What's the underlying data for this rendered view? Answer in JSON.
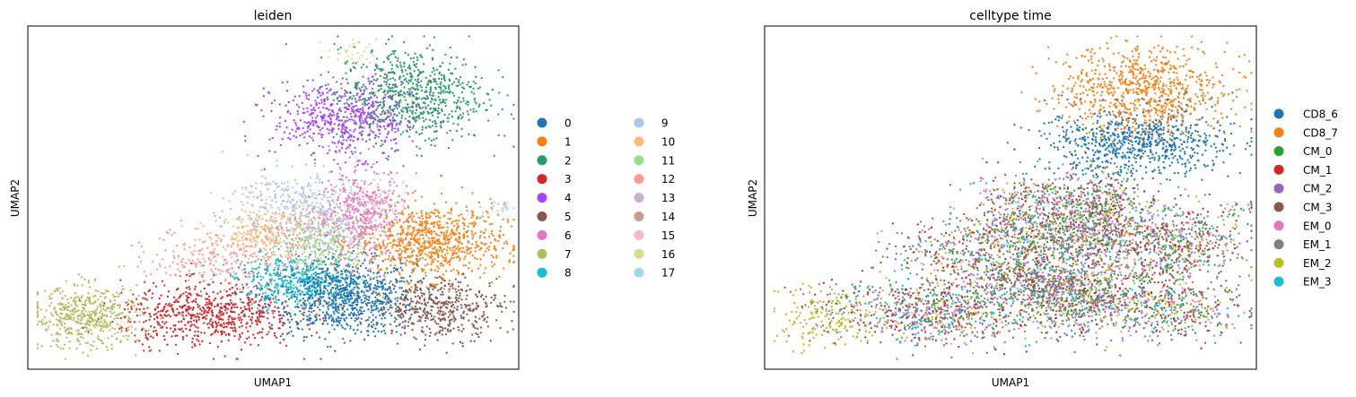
{
  "chart_data": [
    {
      "type": "scatter",
      "title": "leiden",
      "xlabel": "UMAP1",
      "ylabel": "UMAP2",
      "grid": false,
      "legend_position": "right",
      "legend_columns": 2,
      "categories": [
        "0",
        "1",
        "2",
        "3",
        "4",
        "5",
        "6",
        "7",
        "8",
        "9",
        "10",
        "11",
        "12",
        "13",
        "14",
        "15",
        "16",
        "17"
      ],
      "colors": [
        "#1f77b4",
        "#ff7f0e",
        "#279e68",
        "#d62728",
        "#aa40fc",
        "#8c564b",
        "#e377c2",
        "#b5bd61",
        "#17becf",
        "#aec7e8",
        "#ffbb78",
        "#98df8a",
        "#ff9896",
        "#c5b0d5",
        "#c49c94",
        "#f7b6d2",
        "#dbdb8d",
        "#9edae5"
      ],
      "clusters": [
        {
          "cluster": "0",
          "center": [
            6.4,
            2.1
          ],
          "spread": [
            0.75,
            0.55
          ],
          "count": 900
        },
        {
          "cluster": "1",
          "center": [
            8.2,
            3.7
          ],
          "spread": [
            0.75,
            0.55
          ],
          "count": 800
        },
        {
          "cluster": "2",
          "center": [
            7.8,
            8.0
          ],
          "spread": [
            0.75,
            0.7
          ],
          "count": 700
        },
        {
          "cluster": "3",
          "center": [
            3.7,
            1.6
          ],
          "spread": [
            0.9,
            0.45
          ],
          "count": 650
        },
        {
          "cluster": "4",
          "center": [
            6.5,
            7.3
          ],
          "spread": [
            0.75,
            0.55
          ],
          "count": 600
        },
        {
          "cluster": "5",
          "center": [
            8.4,
            1.8
          ],
          "spread": [
            0.65,
            0.45
          ],
          "count": 450
        },
        {
          "cluster": "6",
          "center": [
            6.8,
            4.5
          ],
          "spread": [
            0.45,
            0.7
          ],
          "count": 400
        },
        {
          "cluster": "7",
          "center": [
            1.2,
            1.5
          ],
          "spread": [
            0.55,
            0.45
          ],
          "count": 500
        },
        {
          "cluster": "8",
          "center": [
            5.4,
            2.6
          ],
          "spread": [
            0.6,
            0.35
          ],
          "count": 380
        },
        {
          "cluster": "9",
          "center": [
            5.5,
            4.9
          ],
          "spread": [
            0.65,
            0.45
          ],
          "count": 300
        },
        {
          "cluster": "10",
          "center": [
            4.8,
            4.0
          ],
          "spread": [
            0.55,
            0.45
          ],
          "count": 240
        },
        {
          "cluster": "11",
          "center": [
            6.0,
            3.6
          ],
          "spread": [
            0.55,
            0.4
          ],
          "count": 240
        },
        {
          "cluster": "12",
          "center": [
            4.0,
            3.3
          ],
          "spread": [
            0.75,
            0.45
          ],
          "count": 280
        },
        {
          "cluster": "13",
          "center": [
            6.1,
            4.1
          ],
          "spread": [
            0.5,
            0.4
          ],
          "count": 160
        },
        {
          "cluster": "14",
          "center": [
            5.3,
            3.9
          ],
          "spread": [
            0.3,
            0.3
          ],
          "count": 50
        },
        {
          "cluster": "15",
          "center": [
            6.9,
            4.6
          ],
          "spread": [
            0.4,
            0.45
          ],
          "count": 140
        },
        {
          "cluster": "16",
          "center": [
            6.6,
            9.2
          ],
          "spread": [
            0.25,
            0.2
          ],
          "count": 30
        },
        {
          "cluster": "17",
          "center": [
            9.6,
            4.7
          ],
          "spread": [
            0.2,
            0.1
          ],
          "count": 18
        }
      ],
      "xlim": [
        0,
        10
      ],
      "ylim": [
        0,
        10
      ]
    },
    {
      "type": "scatter",
      "title": "celltype time",
      "xlabel": "UMAP1",
      "ylabel": "UMAP2",
      "grid": false,
      "legend_position": "right",
      "legend_columns": 1,
      "categories": [
        "CD8_6",
        "CD8_7",
        "CM_0",
        "CM_1",
        "CM_2",
        "CM_3",
        "EM_0",
        "EM_1",
        "EM_2",
        "EM_3"
      ],
      "colors": [
        "#1f77b4",
        "#ff7f0e",
        "#2ca02c",
        "#d62728",
        "#9467bd",
        "#8c564b",
        "#e377c2",
        "#7f7f7f",
        "#bcbd22",
        "#17becf"
      ],
      "clusters": [
        {
          "category": "CD8_7",
          "center": [
            7.7,
            8.1
          ],
          "spread": [
            0.85,
            0.65
          ],
          "count": 800
        },
        {
          "category": "CD8_6",
          "center": [
            7.6,
            6.6
          ],
          "spread": [
            0.95,
            0.5
          ],
          "count": 750
        },
        {
          "category": "EM_2",
          "center": [
            1.2,
            1.5
          ],
          "spread": [
            0.5,
            0.4
          ],
          "count": 160
        }
      ],
      "mixed_categories": [
        "CM_0",
        "CM_1",
        "CM_2",
        "CM_3",
        "EM_0",
        "EM_1",
        "EM_2",
        "EM_3"
      ],
      "xlim": [
        0,
        10
      ],
      "ylim": [
        0,
        10
      ]
    }
  ]
}
